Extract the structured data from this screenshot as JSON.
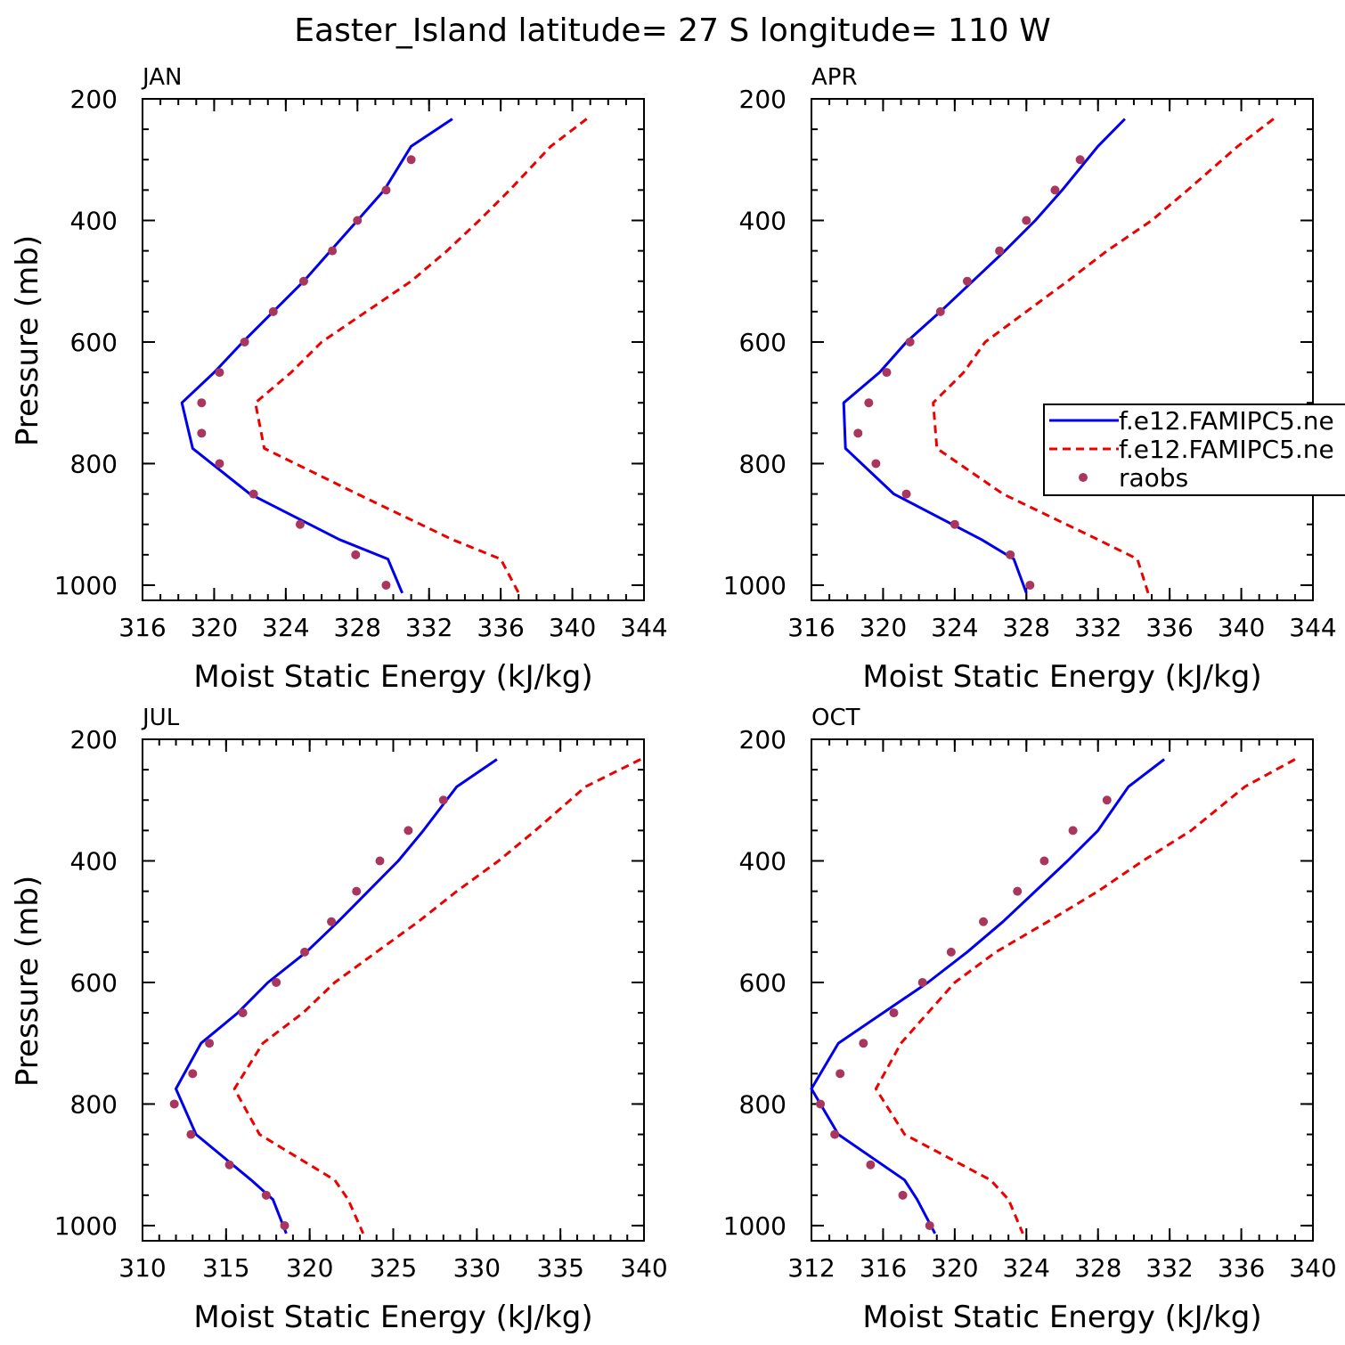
{
  "title": "Easter_Island  latitude= 27 S longitude= 110 W",
  "colors": {
    "model1": "#0000ee",
    "model2": "#ee0000",
    "obs": "#a8365f",
    "axis": "#000000"
  },
  "legend": {
    "entries": [
      {
        "label": "f.e12.FAMIPC5.ne",
        "style": "solid",
        "color": "#0000ee"
      },
      {
        "label": "f.e12.FAMIPC5.ne",
        "style": "dashed",
        "color": "#ee0000"
      },
      {
        "label": "raobs",
        "style": "marker",
        "color": "#a8365f"
      }
    ]
  },
  "chart_data": [
    {
      "type": "line",
      "panel": "JAN",
      "xlabel": "Moist Static Energy (kJ/kg)",
      "ylabel": "Pressure (mb)",
      "xlim": [
        316,
        344
      ],
      "xticks": [
        316,
        320,
        324,
        328,
        332,
        336,
        340,
        344
      ],
      "xminor": 1,
      "ylim": [
        200,
        1025
      ],
      "yticks": [
        200,
        400,
        600,
        800,
        1000
      ],
      "pressure_levels": [
        233,
        278,
        350,
        400,
        450,
        500,
        550,
        600,
        650,
        700,
        775,
        850,
        925,
        957,
        1013
      ],
      "series": [
        {
          "name": "f.e12.FAMIPC5.ne (solid)",
          "pressure": [
            233,
            278,
            350,
            400,
            450,
            500,
            550,
            600,
            650,
            700,
            775,
            850,
            925,
            957,
            1013
          ],
          "values": [
            333.3,
            331.0,
            329.5,
            328.0,
            326.5,
            325.0,
            323.3,
            321.6,
            320.0,
            318.2,
            318.8,
            322.0,
            327.0,
            329.7,
            330.5
          ]
        },
        {
          "name": "f.e12.FAMIPC5.ne (dashed)",
          "pressure": [
            233,
            278,
            350,
            400,
            450,
            500,
            550,
            600,
            650,
            700,
            775,
            850,
            925,
            957,
            1013
          ],
          "values": [
            340.8,
            338.8,
            336.5,
            334.8,
            333.0,
            331.0,
            328.5,
            326.0,
            324.3,
            322.3,
            322.8,
            328.0,
            333.3,
            336.0,
            337.0
          ]
        },
        {
          "name": "raobs",
          "pressure": [
            300,
            350,
            400,
            450,
            500,
            550,
            600,
            650,
            700,
            750,
            800,
            850,
            900,
            950,
            1000
          ],
          "values": [
            331.0,
            329.6,
            328.0,
            326.6,
            325.0,
            323.3,
            321.7,
            320.3,
            319.3,
            319.3,
            320.3,
            322.2,
            324.8,
            327.9,
            329.6
          ],
          "marker": true
        }
      ]
    },
    {
      "type": "line",
      "panel": "APR",
      "xlabel": "Moist Static Energy (kJ/kg)",
      "ylabel": "",
      "xlim": [
        316,
        344
      ],
      "xticks": [
        316,
        320,
        324,
        328,
        332,
        336,
        340,
        344
      ],
      "xminor": 1,
      "ylim": [
        200,
        1025
      ],
      "yticks": [
        200,
        400,
        600,
        800,
        1000
      ],
      "series": [
        {
          "name": "f.e12.FAMIPC5.ne (solid)",
          "pressure": [
            233,
            278,
            350,
            400,
            450,
            500,
            550,
            600,
            650,
            700,
            775,
            850,
            925,
            957,
            1013
          ],
          "values": [
            333.5,
            332.0,
            330.0,
            328.5,
            326.8,
            325.0,
            323.2,
            321.3,
            319.8,
            317.8,
            317.9,
            320.6,
            325.5,
            327.3,
            328.0
          ]
        },
        {
          "name": "f.e12.FAMIPC5.ne (dashed)",
          "pressure": [
            233,
            278,
            350,
            400,
            450,
            500,
            550,
            600,
            650,
            700,
            775,
            850,
            925,
            957,
            1013
          ],
          "values": [
            341.8,
            339.8,
            337.0,
            335.0,
            332.5,
            330.3,
            328.0,
            325.7,
            324.5,
            322.8,
            323.0,
            326.7,
            332.0,
            334.2,
            334.8
          ]
        },
        {
          "name": "raobs",
          "pressure": [
            300,
            350,
            400,
            450,
            500,
            550,
            600,
            650,
            700,
            750,
            800,
            850,
            900,
            950,
            1000
          ],
          "values": [
            331.0,
            329.6,
            328.0,
            326.5,
            324.7,
            323.2,
            321.5,
            320.2,
            319.2,
            318.6,
            319.6,
            321.3,
            324.0,
            327.1,
            328.2
          ],
          "marker": true
        }
      ]
    },
    {
      "type": "line",
      "panel": "JUL",
      "xlabel": "Moist Static Energy (kJ/kg)",
      "ylabel": "Pressure (mb)",
      "xlim": [
        310,
        340
      ],
      "xticks": [
        310,
        315,
        320,
        325,
        330,
        335,
        340
      ],
      "xminor": 1,
      "ylim": [
        200,
        1025
      ],
      "yticks": [
        200,
        400,
        600,
        800,
        1000
      ],
      "series": [
        {
          "name": "f.e12.FAMIPC5.ne (solid)",
          "pressure": [
            233,
            278,
            350,
            400,
            450,
            500,
            550,
            600,
            650,
            700,
            775,
            850,
            925,
            957,
            1013
          ],
          "values": [
            331.2,
            328.8,
            326.8,
            325.3,
            323.5,
            321.7,
            319.8,
            317.5,
            315.7,
            313.5,
            312.0,
            313.2,
            316.5,
            317.8,
            318.6
          ]
        },
        {
          "name": "f.e12.FAMIPC5.ne (dashed)",
          "pressure": [
            233,
            278,
            350,
            400,
            450,
            500,
            550,
            600,
            650,
            700,
            775,
            850,
            925,
            957,
            1013
          ],
          "values": [
            339.8,
            336.5,
            333.5,
            331.3,
            328.8,
            326.5,
            324.0,
            321.5,
            319.6,
            317.2,
            315.5,
            317.0,
            321.5,
            322.3,
            323.2
          ]
        },
        {
          "name": "raobs",
          "pressure": [
            300,
            350,
            400,
            450,
            500,
            550,
            600,
            650,
            700,
            750,
            800,
            850,
            900,
            950,
            1000
          ],
          "values": [
            328.0,
            325.9,
            324.2,
            322.8,
            321.3,
            319.7,
            318.0,
            316.0,
            314.0,
            313.0,
            311.9,
            312.9,
            315.2,
            317.4,
            318.5
          ],
          "marker": true
        }
      ]
    },
    {
      "type": "line",
      "panel": "OCT",
      "xlabel": "Moist Static Energy (kJ/kg)",
      "ylabel": "",
      "xlim": [
        312,
        340
      ],
      "xticks": [
        312,
        316,
        320,
        324,
        328,
        332,
        336,
        340
      ],
      "xminor": 1,
      "ylim": [
        200,
        1025
      ],
      "yticks": [
        200,
        400,
        600,
        800,
        1000
      ],
      "series": [
        {
          "name": "f.e12.FAMIPC5.ne (solid)",
          "pressure": [
            233,
            278,
            350,
            400,
            450,
            500,
            550,
            600,
            650,
            700,
            775,
            850,
            925,
            957,
            1013
          ],
          "values": [
            331.7,
            329.7,
            328.0,
            326.3,
            324.5,
            322.7,
            320.7,
            318.5,
            316.0,
            313.5,
            312.0,
            313.5,
            317.2,
            317.9,
            318.9
          ]
        },
        {
          "name": "f.e12.FAMIPC5.ne (dashed)",
          "pressure": [
            233,
            278,
            350,
            400,
            450,
            500,
            550,
            600,
            650,
            700,
            775,
            850,
            925,
            957,
            1013
          ],
          "values": [
            339.0,
            336.2,
            333.2,
            330.5,
            328.0,
            325.2,
            322.3,
            320.0,
            318.5,
            317.0,
            315.6,
            317.2,
            322.0,
            323.0,
            323.8
          ]
        },
        {
          "name": "raobs",
          "pressure": [
            300,
            350,
            400,
            450,
            500,
            550,
            600,
            650,
            700,
            750,
            800,
            850,
            900,
            950,
            1000
          ],
          "values": [
            328.5,
            326.6,
            325.0,
            323.5,
            321.6,
            319.8,
            318.2,
            316.6,
            314.9,
            313.6,
            312.5,
            313.3,
            315.3,
            317.1,
            318.6
          ],
          "marker": true
        }
      ]
    }
  ]
}
